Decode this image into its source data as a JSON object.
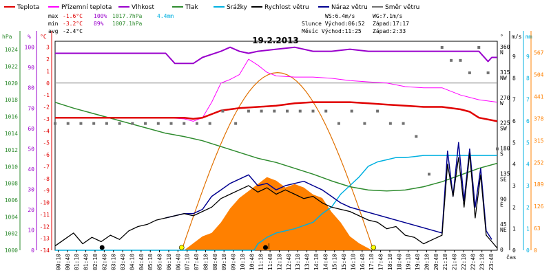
{
  "chart_data": {
    "type": "line",
    "title": "19.2.2013",
    "xlabel": "čas",
    "colors": {
      "teplota": "#e00000",
      "prizemni": "#ff00ff",
      "vlhkost": "#9900cc",
      "tlak": "#2e8b2e",
      "srazky": "#00b0e0",
      "rychlost": "#000000",
      "naraz": "#000090",
      "smer": "#707070",
      "sun": "#ff8000"
    },
    "legend": [
      {
        "key": "teplota",
        "label": "Teplota"
      },
      {
        "key": "prizemni",
        "label": "Přízemní teplota"
      },
      {
        "key": "vlhkost",
        "label": "Vlhkost"
      },
      {
        "key": "tlak",
        "label": "Tlak"
      },
      {
        "key": "srazky",
        "label": "Srážky"
      },
      {
        "key": "rychlost",
        "label": "Rychlost větru"
      },
      {
        "key": "naraz",
        "label": "Náraz větru"
      },
      {
        "key": "smer",
        "label": "Směr větru"
      }
    ],
    "stats": {
      "max_label": "max",
      "max_temp": "-1.6°C",
      "max_hum": "100%",
      "max_press": "1017.7hPa",
      "rain": "4.4mm",
      "min_label": "min",
      "min_temp": "-3.2°C",
      "min_hum": "89%",
      "min_press": "1007.1hPa",
      "avg_label": "avg",
      "avg_temp": "-2.4°C",
      "ws": "WS:6.4m/s",
      "wg": "WG:7.1m/s",
      "sun_rise": "Slunce Východ:06:52",
      "sun_set": "Západ:17:17",
      "moon_rise": "Měsíc Východ:11:25",
      "moon_set": "Západ:2:33"
    },
    "axes": {
      "hpa": {
        "title": "hPa",
        "ticks": [
          "1024",
          "1022",
          "1020",
          "1018",
          "1016",
          "1014",
          "1012",
          "1010",
          "1008",
          "1006",
          "1004",
          "1002",
          "1000"
        ],
        "range": [
          1000,
          1025
        ]
      },
      "pct": {
        "title": "%",
        "ticks": [
          "100",
          "90",
          "80",
          "70",
          "60",
          "50",
          "40",
          "30",
          "20",
          "10",
          "0"
        ]
      },
      "degc": {
        "title": "°C",
        "ticks": [
          "3",
          "2",
          "1",
          "0",
          "-1",
          "-2",
          "-3",
          "-4",
          "-5",
          "-6",
          "-7",
          "-8",
          "-9",
          "-10",
          "-11",
          "-12",
          "-13",
          "-14"
        ],
        "range": [
          -14,
          3.5
        ]
      },
      "dir": {
        "title": "°",
        "ticks": [
          {
            "v": 360,
            "l": "360",
            "s": "N"
          },
          {
            "v": 315,
            "l": "315",
            "s": "NW"
          },
          {
            "v": 270,
            "l": "270",
            "s": "W"
          },
          {
            "v": 225,
            "l": "225",
            "s": "SW"
          },
          {
            "v": 180,
            "l": "180",
            "s": "S"
          },
          {
            "v": 135,
            "l": "135",
            "s": "SE"
          },
          {
            "v": 90,
            "l": "90",
            "s": "E"
          },
          {
            "v": 45,
            "l": "45",
            "s": "NE"
          },
          {
            "v": 0,
            "l": "0",
            "s": ""
          }
        ]
      },
      "ms": {
        "title": "m/s",
        "ticks": [
          "9",
          "8",
          "7",
          "6",
          "5",
          "4",
          "3",
          "2",
          "1",
          "0"
        ],
        "range": [
          0,
          9.7
        ]
      },
      "mm": {
        "title": "mm",
        "ticks": [
          "9",
          "8",
          "7",
          "6",
          "5",
          "4",
          "3",
          "2",
          "1",
          "0"
        ],
        "range": [
          0,
          9.7
        ]
      },
      "wm2": {
        "ticks": [
          "567",
          "504",
          "441",
          "378",
          "315",
          "252",
          "189",
          "126",
          "63",
          "0"
        ],
        "range": [
          0,
          600
        ]
      },
      "time": [
        "00:10",
        "00:40",
        "01:10",
        "01:40",
        "02:10",
        "02:40",
        "03:10",
        "03:40",
        "04:10",
        "04:40",
        "05:10",
        "05:40",
        "06:10",
        "06:40",
        "07:10",
        "07:40",
        "08:10",
        "08:40",
        "09:10",
        "09:40",
        "10:10",
        "10:40",
        "11:10",
        "11:40",
        "12:10",
        "12:40",
        "13:10",
        "13:40",
        "14:10",
        "14:40",
        "15:10",
        "15:40",
        "16:10",
        "16:40",
        "17:10",
        "17:40",
        "18:10",
        "18:40",
        "19:10",
        "19:40",
        "20:10",
        "20:40",
        "21:10",
        "21:40",
        "22:10",
        "22:40",
        "23:10",
        "23:40"
      ]
    },
    "series": {
      "teplota": {
        "t": [
          0,
          2,
          4,
          6,
          7,
          7.5,
          8,
          8.5,
          9,
          10,
          11,
          12,
          13,
          14,
          15,
          16,
          17,
          18,
          19,
          20,
          21,
          22,
          22.5,
          23,
          24
        ],
        "v": [
          -2.9,
          -2.9,
          -2.9,
          -2.9,
          -2.9,
          -3.0,
          -2.9,
          -2.6,
          -2.3,
          -2.1,
          -2.0,
          -1.9,
          -1.7,
          -1.6,
          -1.6,
          -1.6,
          -1.7,
          -1.8,
          -1.9,
          -2.0,
          -2.0,
          -2.2,
          -2.4,
          -2.9,
          -3.2
        ]
      },
      "prizemni": {
        "t": [
          0,
          2,
          4,
          6,
          7,
          7.5,
          8,
          8.5,
          9,
          9.5,
          10,
          10.5,
          11,
          11.5,
          12,
          13,
          14,
          15,
          16,
          17,
          18,
          19,
          20,
          21,
          22,
          23,
          24
        ],
        "v": [
          -2.9,
          -2.9,
          -2.9,
          -2.9,
          -3.0,
          -3.2,
          -2.9,
          -1.6,
          0.0,
          0.3,
          0.7,
          2.0,
          1.5,
          0.9,
          0.6,
          0.5,
          0.5,
          0.4,
          0.2,
          0.1,
          0.0,
          -0.3,
          -0.4,
          -0.4,
          -1.0,
          -1.4,
          -1.6
        ]
      },
      "vlhkost": {
        "t": [
          0,
          1,
          2,
          3,
          4,
          5,
          6,
          6.5,
          7,
          7.5,
          8,
          9,
          9.5,
          10,
          10.5,
          11,
          12,
          13,
          14,
          15,
          16,
          17,
          18,
          19,
          20,
          21,
          22,
          23,
          23.5,
          23.7,
          24
        ],
        "v": [
          97,
          97,
          97,
          97,
          97,
          97,
          97,
          92,
          92,
          92,
          95,
          98,
          100,
          98,
          97,
          98,
          99,
          100,
          98,
          98,
          99,
          98,
          98,
          98,
          98,
          98,
          98,
          98,
          93,
          95,
          95
        ]
      },
      "tlak": {
        "t": [
          0,
          1,
          2,
          3,
          4,
          5,
          6,
          7,
          8,
          9,
          10,
          11,
          12,
          13,
          14,
          15,
          16,
          17,
          18,
          19,
          20,
          21,
          22,
          23,
          24
        ],
        "v": [
          1017.7,
          1017.0,
          1016.4,
          1015.8,
          1015.2,
          1014.6,
          1014.0,
          1013.6,
          1013.1,
          1012.4,
          1011.7,
          1011.0,
          1010.5,
          1009.8,
          1009.1,
          1008.3,
          1007.6,
          1007.2,
          1007.1,
          1007.2,
          1007.6,
          1008.2,
          1009.0,
          1009.8,
          1010.4
        ]
      },
      "srazky": {
        "t": [
          0,
          10.8,
          11.0,
          11.5,
          12,
          13,
          14,
          14.5,
          15,
          15.5,
          16,
          16.5,
          17,
          17.5,
          18,
          18.5,
          19,
          19.5,
          20,
          20.5,
          21,
          21.5,
          22,
          22.5,
          23,
          24
        ],
        "v": [
          0,
          0,
          0.3,
          0.6,
          0.8,
          1.0,
          1.3,
          1.7,
          2.0,
          2.6,
          3.0,
          3.4,
          3.9,
          4.1,
          4.2,
          4.3,
          4.3,
          4.35,
          4.4,
          4.4,
          4.4,
          4.4,
          4.4,
          4.4,
          4.4,
          4.4
        ]
      },
      "rychlost": {
        "t": [
          0,
          0.5,
          1,
          1.5,
          2,
          2.5,
          3,
          3.5,
          4,
          4.5,
          5,
          5.5,
          6,
          6.5,
          7,
          7.5,
          8,
          8.5,
          9,
          9.5,
          10,
          10.5,
          11,
          11.5,
          12,
          12.5,
          13,
          13.5,
          14,
          14.5,
          15,
          15.5,
          16,
          16.5,
          17,
          17.5,
          18,
          18.5,
          19,
          19.5,
          20,
          20.5,
          21,
          21.3,
          21.6,
          21.9,
          22.2,
          22.5,
          22.8,
          23.1,
          23.4,
          23.7,
          24
        ],
        "v": [
          0.2,
          0.5,
          0.8,
          0.3,
          0.6,
          0.4,
          0.7,
          0.5,
          0.9,
          1.1,
          1.2,
          1.4,
          1.5,
          1.6,
          1.7,
          1.6,
          1.8,
          2.0,
          2.4,
          2.6,
          2.8,
          3.0,
          2.7,
          2.9,
          2.6,
          2.8,
          2.6,
          2.4,
          2.5,
          2.2,
          2.0,
          1.9,
          1.8,
          1.6,
          1.4,
          1.3,
          1.0,
          1.1,
          0.7,
          0.6,
          0.3,
          0.5,
          0.7,
          4.0,
          2.5,
          4.3,
          2.0,
          4.5,
          1.5,
          3.5,
          0.7,
          0.4,
          0.1
        ]
      },
      "naraz": {
        "t": [
          6,
          7,
          7.5,
          8,
          8.5,
          9,
          9.5,
          10,
          10.5,
          11,
          11.5,
          12,
          12.5,
          13,
          13.5,
          14,
          14.5,
          15,
          15.5,
          16,
          21,
          21.3,
          21.6,
          21.9,
          22.2,
          22.5,
          22.8,
          23.1,
          23.4,
          23.7
        ],
        "v": [
          1.5,
          1.7,
          1.7,
          1.9,
          2.5,
          2.8,
          3.1,
          3.3,
          3.5,
          3.0,
          3.1,
          2.8,
          3.0,
          3.1,
          3.2,
          3.0,
          2.8,
          2.5,
          2.2,
          2.0,
          0.8,
          4.6,
          2.5,
          5.0,
          2.3,
          4.7,
          2.0,
          3.8,
          0.9,
          0.5
        ]
      },
      "smer": {
        "t": [
          0,
          0.7,
          1.4,
          2.1,
          2.8,
          3.5,
          4.2,
          4.9,
          5.6,
          6.3,
          7.0,
          7.7,
          8.4,
          9.1,
          9.8,
          10.5,
          11.2,
          11.9,
          12.6,
          13.3,
          14,
          14.7,
          15.4,
          16.1,
          16.8,
          17.5,
          18.2,
          18.9,
          19.6,
          20.3,
          21.0,
          21.5,
          22.0,
          22.5,
          23.0,
          23.5,
          24
        ],
        "v": [
          225,
          225,
          225,
          225,
          225,
          225,
          225,
          225,
          225,
          225,
          225,
          225,
          225,
          247,
          225,
          247,
          247,
          247,
          247,
          247,
          247,
          247,
          225,
          247,
          225,
          247,
          225,
          225,
          202,
          135,
          360,
          337,
          337,
          315,
          360,
          315,
          180
        ]
      },
      "sunradiation": {
        "t": [
          7.0,
          7.5,
          8.0,
          8.5,
          9,
          9.5,
          10,
          10.5,
          11,
          11.5,
          12,
          12.5,
          13,
          13.5,
          14,
          14.5,
          15,
          15.5,
          16,
          16.5,
          17.2
        ],
        "v": [
          0,
          20,
          40,
          50,
          80,
          120,
          150,
          170,
          190,
          210,
          200,
          180,
          190,
          180,
          160,
          150,
          110,
          80,
          40,
          20,
          0
        ]
      },
      "suncurve": {
        "rise_h": 6.87,
        "set_h": 17.28,
        "peak": 510
      }
    },
    "markers": {
      "sun_rise_h": 6.87,
      "sun_set_h": 17.28,
      "moon_set_h": 2.55,
      "moon_rise_h": 11.42
    }
  }
}
